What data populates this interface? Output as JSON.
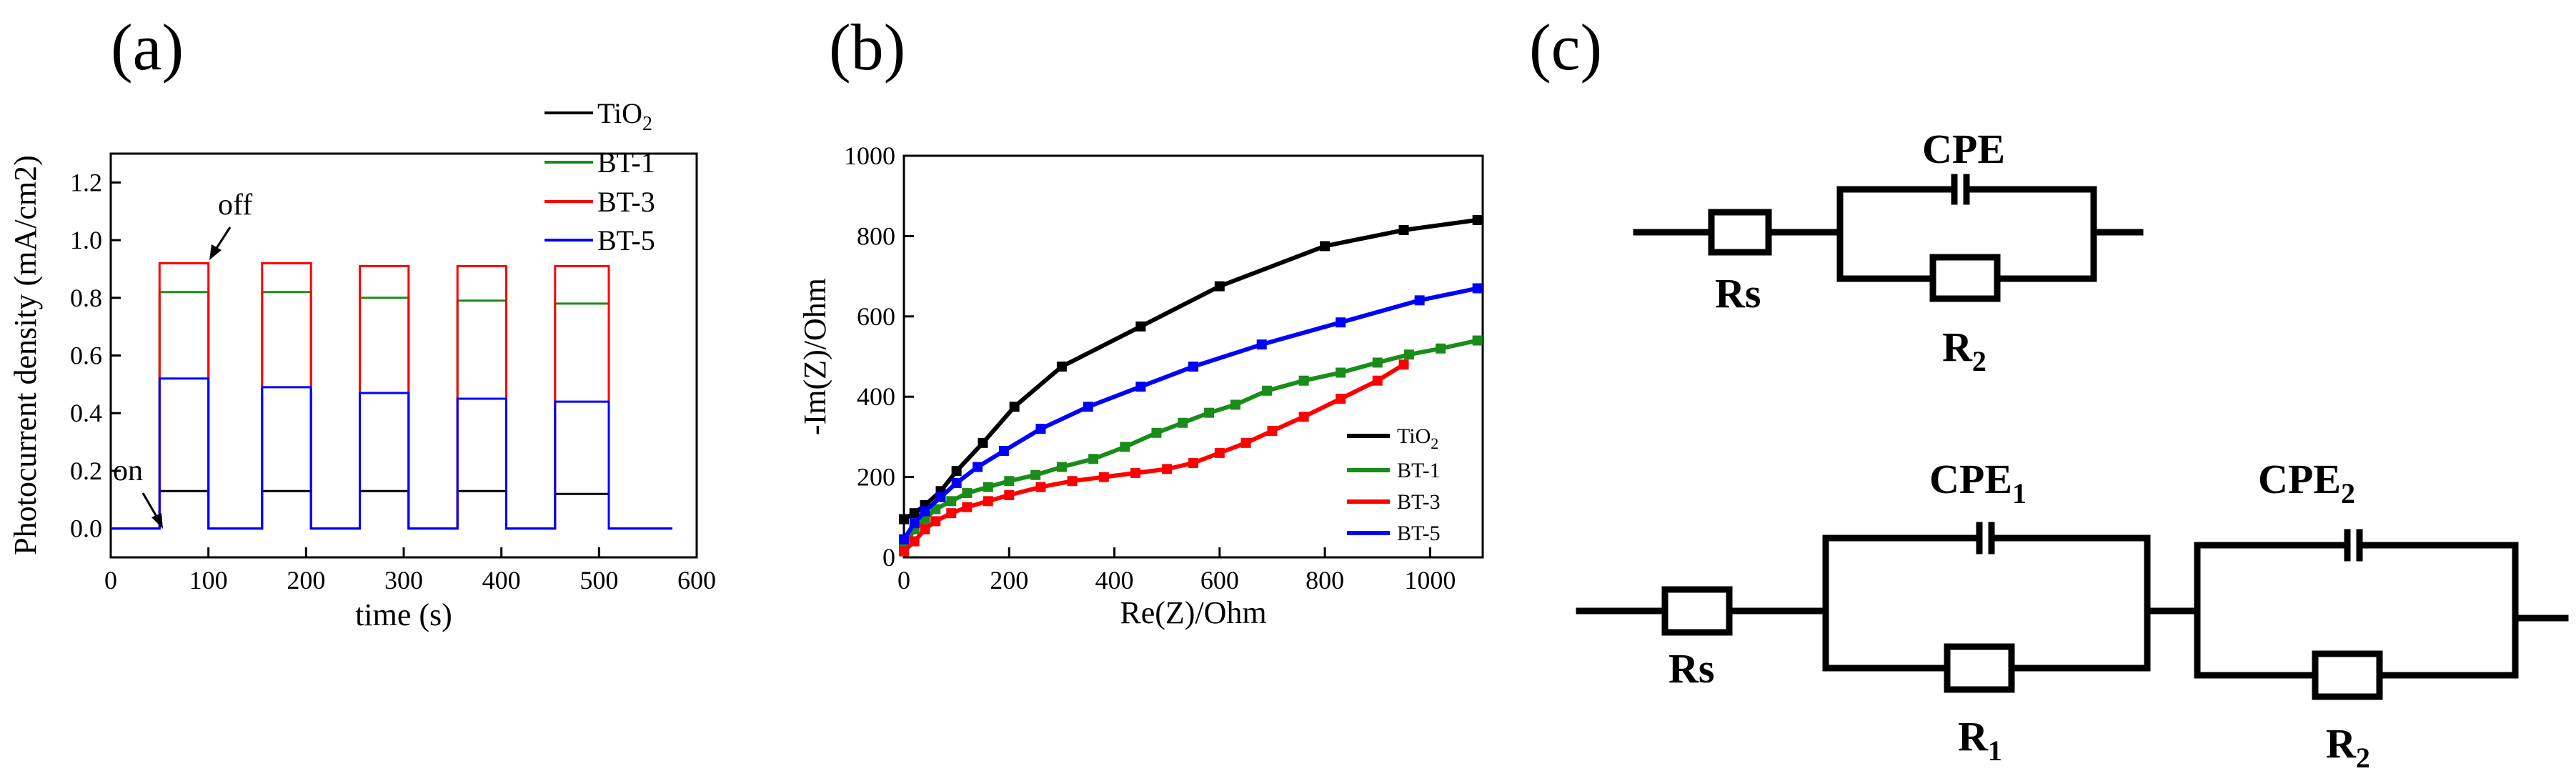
{
  "figure": {
    "panels": [
      "(a)",
      "(b)",
      "(c)"
    ]
  },
  "chart_data": [
    {
      "type": "line",
      "panel": "(a)",
      "title": "",
      "xlabel": "time (s)",
      "ylabel": "Photocurrent density (mA/cm2)",
      "xlim": [
        0,
        600
      ],
      "ylim": [
        -0.1,
        1.3
      ],
      "xticks": [
        "0",
        "100",
        "200",
        "300",
        "400",
        "500",
        "600"
      ],
      "yticks": [
        "0.0",
        "0.2",
        "0.4",
        "0.6",
        "0.8",
        "1.0",
        "1.2"
      ],
      "legend_position": "top-right",
      "annotations": [
        {
          "text": "on",
          "x": 50,
          "y": 0.0
        },
        {
          "text": "off",
          "x": 100,
          "y": 0.91
        }
      ],
      "on_intervals": [
        [
          50,
          100
        ],
        [
          155,
          205
        ],
        [
          255,
          305
        ],
        [
          355,
          405
        ],
        [
          455,
          510
        ]
      ],
      "x_end": 575,
      "series": [
        {
          "name": "TiO2",
          "label_main": "TiO",
          "label_sub": "2",
          "color": "#000000",
          "on_values": [
            0.13,
            0.13,
            0.13,
            0.13,
            0.12
          ],
          "off_value": 0.0
        },
        {
          "name": "BT-1",
          "label_main": "BT-1",
          "label_sub": "",
          "color": "#1a8c1a",
          "on_values": [
            0.82,
            0.82,
            0.8,
            0.79,
            0.78
          ],
          "off_value": 0.0
        },
        {
          "name": "BT-3",
          "label_main": "BT-3",
          "label_sub": "",
          "color": "#ff0000",
          "on_values": [
            0.92,
            0.92,
            0.91,
            0.91,
            0.91
          ],
          "off_value": 0.0
        },
        {
          "name": "BT-5",
          "label_main": "BT-5",
          "label_sub": "",
          "color": "#0000ff",
          "on_values": [
            0.52,
            0.49,
            0.47,
            0.45,
            0.44
          ],
          "off_value": 0.0
        }
      ]
    },
    {
      "type": "line",
      "panel": "(b)",
      "title": "",
      "xlabel": "Re(Z)/Ohm",
      "ylabel": "-Im(Z)/Ohm",
      "xlim": [
        0,
        1100
      ],
      "ylim": [
        0,
        1000
      ],
      "xticks": [
        "0",
        "200",
        "400",
        "600",
        "800",
        "1000"
      ],
      "yticks": [
        "0",
        "200",
        "400",
        "600",
        "800",
        "1000"
      ],
      "legend_position": "bottom-right",
      "series": [
        {
          "name": "TiO2",
          "label_main": "TiO",
          "label_sub": "2",
          "color": "#000000",
          "x": [
            0,
            20,
            40,
            70,
            100,
            150,
            210,
            300,
            450,
            600,
            800,
            950,
            1090
          ],
          "y": [
            95,
            110,
            130,
            165,
            215,
            285,
            375,
            475,
            575,
            675,
            775,
            815,
            840
          ]
        },
        {
          "name": "BT-1",
          "label_main": "BT-1",
          "label_sub": "",
          "color": "#1a8c1a",
          "x": [
            0,
            20,
            40,
            60,
            90,
            120,
            160,
            200,
            250,
            300,
            360,
            420,
            480,
            530,
            580,
            630,
            690,
            760,
            830,
            900,
            960,
            1020,
            1090
          ],
          "y": [
            25,
            70,
            95,
            120,
            140,
            160,
            175,
            190,
            205,
            225,
            245,
            275,
            310,
            335,
            360,
            380,
            415,
            440,
            460,
            485,
            505,
            520,
            540
          ]
        },
        {
          "name": "BT-3",
          "label_main": "BT-3",
          "label_sub": "",
          "color": "#ff0000",
          "x": [
            0,
            20,
            40,
            60,
            90,
            120,
            160,
            200,
            260,
            320,
            380,
            440,
            500,
            550,
            600,
            650,
            700,
            760,
            830,
            900,
            950
          ],
          "y": [
            15,
            40,
            70,
            90,
            110,
            125,
            140,
            155,
            175,
            190,
            200,
            210,
            220,
            235,
            260,
            285,
            315,
            350,
            395,
            440,
            480
          ]
        },
        {
          "name": "BT-5",
          "label_main": "BT-5",
          "label_sub": "",
          "color": "#0000ff",
          "x": [
            0,
            20,
            40,
            70,
            100,
            140,
            190,
            260,
            350,
            450,
            550,
            680,
            830,
            980,
            1090
          ],
          "y": [
            45,
            85,
            115,
            150,
            185,
            225,
            265,
            320,
            375,
            425,
            475,
            530,
            585,
            640,
            670
          ]
        }
      ]
    }
  ],
  "circuits": {
    "top": {
      "rs": "Rs",
      "cpe": "CPE",
      "r_main": "R",
      "r_sub": "2"
    },
    "bottom": {
      "rs": "Rs",
      "cpe1_main": "CPE",
      "cpe1_sub": "1",
      "cpe2_main": "CPE",
      "cpe2_sub": "2",
      "r1_main": "R",
      "r1_sub": "1",
      "r2_main": "R",
      "r2_sub": "2"
    }
  }
}
